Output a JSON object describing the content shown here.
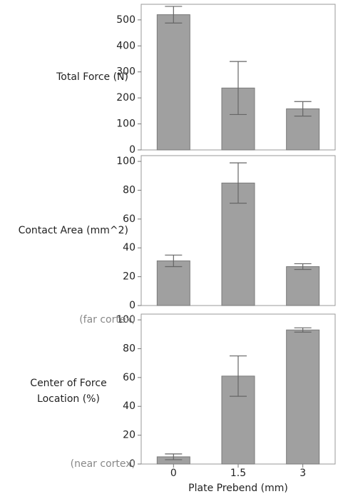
{
  "chart_data": [
    {
      "type": "bar",
      "ylabel": "Total Force (N)",
      "values": [
        520,
        238,
        158
      ],
      "errors": [
        32,
        102,
        28
      ],
      "ylim": [
        0,
        560
      ],
      "yticks": [
        0,
        100,
        200,
        300,
        400,
        500
      ],
      "color": "#a0a0a0"
    },
    {
      "type": "bar",
      "ylabel": "Contact Area (mm^2)",
      "values": [
        31,
        85,
        27
      ],
      "errors": [
        4,
        14,
        2
      ],
      "ylim": [
        0,
        104
      ],
      "yticks": [
        0,
        20,
        40,
        60,
        80,
        100
      ],
      "color": "#a0a0a0"
    },
    {
      "type": "bar",
      "ylabel": [
        "Center of Force",
        "Location (%)"
      ],
      "annotations": [
        "(far cortex)",
        "(near cortex)"
      ],
      "categories": [
        "0",
        "1.5",
        "3"
      ],
      "xlabel": "Plate Prebend (mm)",
      "values": [
        5,
        61,
        93
      ],
      "errors": [
        2,
        14,
        1.5
      ],
      "ylim": [
        0,
        104
      ],
      "yticks": [
        0,
        20,
        40,
        60,
        80,
        100
      ],
      "color": "#a0a0a0"
    }
  ]
}
